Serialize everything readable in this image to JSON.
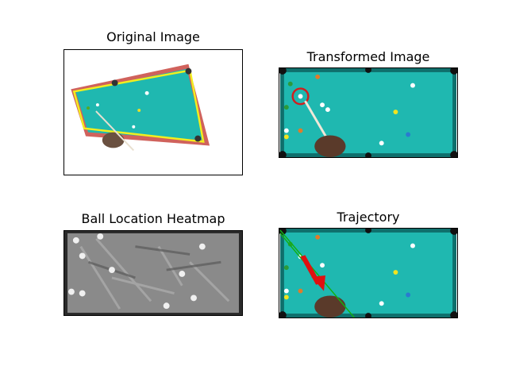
{
  "figure": {
    "panels": [
      {
        "title": "Original Image"
      },
      {
        "title": "Transformed Image"
      },
      {
        "title": "Ball Location Heatmap"
      },
      {
        "title": "Trajectory"
      }
    ]
  },
  "colors": {
    "felt": "#1fb8b0",
    "felt_dark": "#0f6f6c",
    "rail": "#c8463f",
    "outline": "#f2ee1e",
    "detect_circle": "#d01f1f",
    "trajectory_line": "#12b012",
    "trajectory_arrow": "#e01010"
  }
}
